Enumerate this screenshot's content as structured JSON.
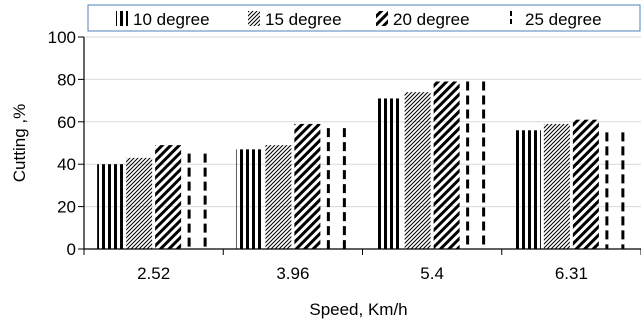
{
  "chart_data": {
    "type": "bar",
    "categories": [
      "2.52",
      "3.96",
      "5.4",
      "6.31"
    ],
    "series": [
      {
        "name": "10 degree",
        "values": [
          40,
          47,
          71,
          56
        ],
        "pattern": "vertical-lines"
      },
      {
        "name": "15 degree",
        "values": [
          43,
          49,
          74,
          59
        ],
        "pattern": "fine-diagonal"
      },
      {
        "name": "20 degree",
        "values": [
          49,
          59,
          79,
          61
        ],
        "pattern": "heavy-diagonal"
      },
      {
        "name": "25 degree",
        "values": [
          45,
          57,
          79,
          55
        ],
        "pattern": "dashed-outline"
      }
    ],
    "yticks": [
      "0",
      "20",
      "40",
      "60",
      "80",
      "100"
    ],
    "xlabel": "Speed, Km/h",
    "ylabel": "Cutting ,%",
    "ylim": [
      0,
      100
    ],
    "grid": true,
    "legend_position": "top",
    "colors": {
      "bar": "#000000",
      "grid": "#d9d9d9",
      "legend_border": "#4f81bd",
      "axis": "#000000"
    }
  }
}
